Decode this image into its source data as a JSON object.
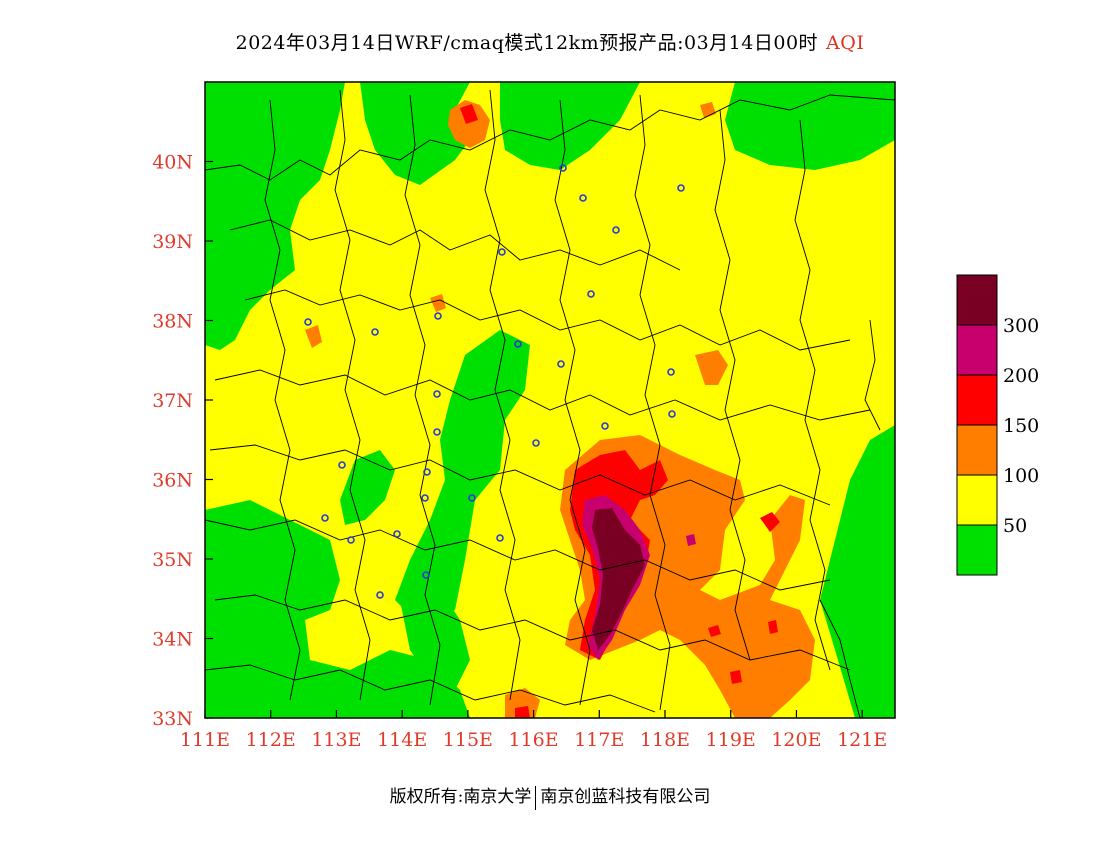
{
  "title": {
    "main": "2024年03月14日WRF/cmaq模式12km预报产品:03月14日00时",
    "variable": "AQI"
  },
  "map": {
    "lon_range": [
      111,
      121.5
    ],
    "lat_range": [
      33,
      41
    ],
    "lon_ticks": [
      "111E",
      "112E",
      "113E",
      "114E",
      "115E",
      "116E",
      "117E",
      "118E",
      "119E",
      "120E",
      "121E"
    ],
    "lat_ticks": [
      "33N",
      "34N",
      "35N",
      "36N",
      "37N",
      "38N",
      "39N",
      "40N"
    ]
  },
  "legend": {
    "labels": [
      "50",
      "100",
      "150",
      "200",
      "300"
    ],
    "colors": [
      "#00e000",
      "#ffff00",
      "#ff7e00",
      "#ff0000",
      "#c8006e",
      "#7a0023"
    ]
  },
  "footer": {
    "copyright": "版权所有:南京大学",
    "company": "南京创蓝科技有限公司"
  }
}
